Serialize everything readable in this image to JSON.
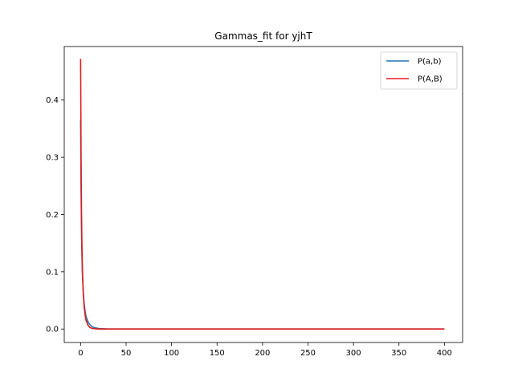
{
  "chart_data": {
    "type": "line",
    "title": "Gammas_fit for yjhT",
    "xlabel": "",
    "ylabel": "",
    "xlim": [
      -18,
      420
    ],
    "ylim": [
      -0.0235,
      0.4935
    ],
    "xticks": [
      0,
      50,
      100,
      150,
      200,
      250,
      300,
      350,
      400
    ],
    "yticks": [
      0.0,
      0.1,
      0.2,
      0.3,
      0.4
    ],
    "ytick_labels": [
      "0.0",
      "0.1",
      "0.2",
      "0.3",
      "0.4"
    ],
    "grid": false,
    "legend_position": "top-right",
    "series": [
      {
        "name": "P(a,b)",
        "color": "#1f77b4",
        "x": [
          0,
          0.5,
          1,
          1.5,
          2,
          3,
          4,
          5,
          6,
          8,
          10,
          12,
          15,
          20,
          30,
          50,
          100,
          200,
          300,
          400
        ],
        "y": [
          0.365,
          0.24,
          0.17,
          0.125,
          0.095,
          0.062,
          0.043,
          0.03,
          0.022,
          0.013,
          0.008,
          0.005,
          0.0025,
          0.0008,
          0.0001,
          0,
          0,
          0,
          0,
          0
        ]
      },
      {
        "name": "P(A,B)",
        "color": "#e41a1c",
        "x": [
          0,
          0.5,
          1,
          1.5,
          2,
          3,
          4,
          5,
          6,
          8,
          10,
          12,
          15,
          20,
          30,
          50,
          100,
          200,
          300,
          400
        ],
        "y": [
          0.472,
          0.3,
          0.2,
          0.14,
          0.1,
          0.06,
          0.037,
          0.024,
          0.015,
          0.007,
          0.003,
          0.0015,
          0.0005,
          0.0001,
          0,
          0,
          0,
          0,
          0,
          0
        ]
      }
    ]
  }
}
